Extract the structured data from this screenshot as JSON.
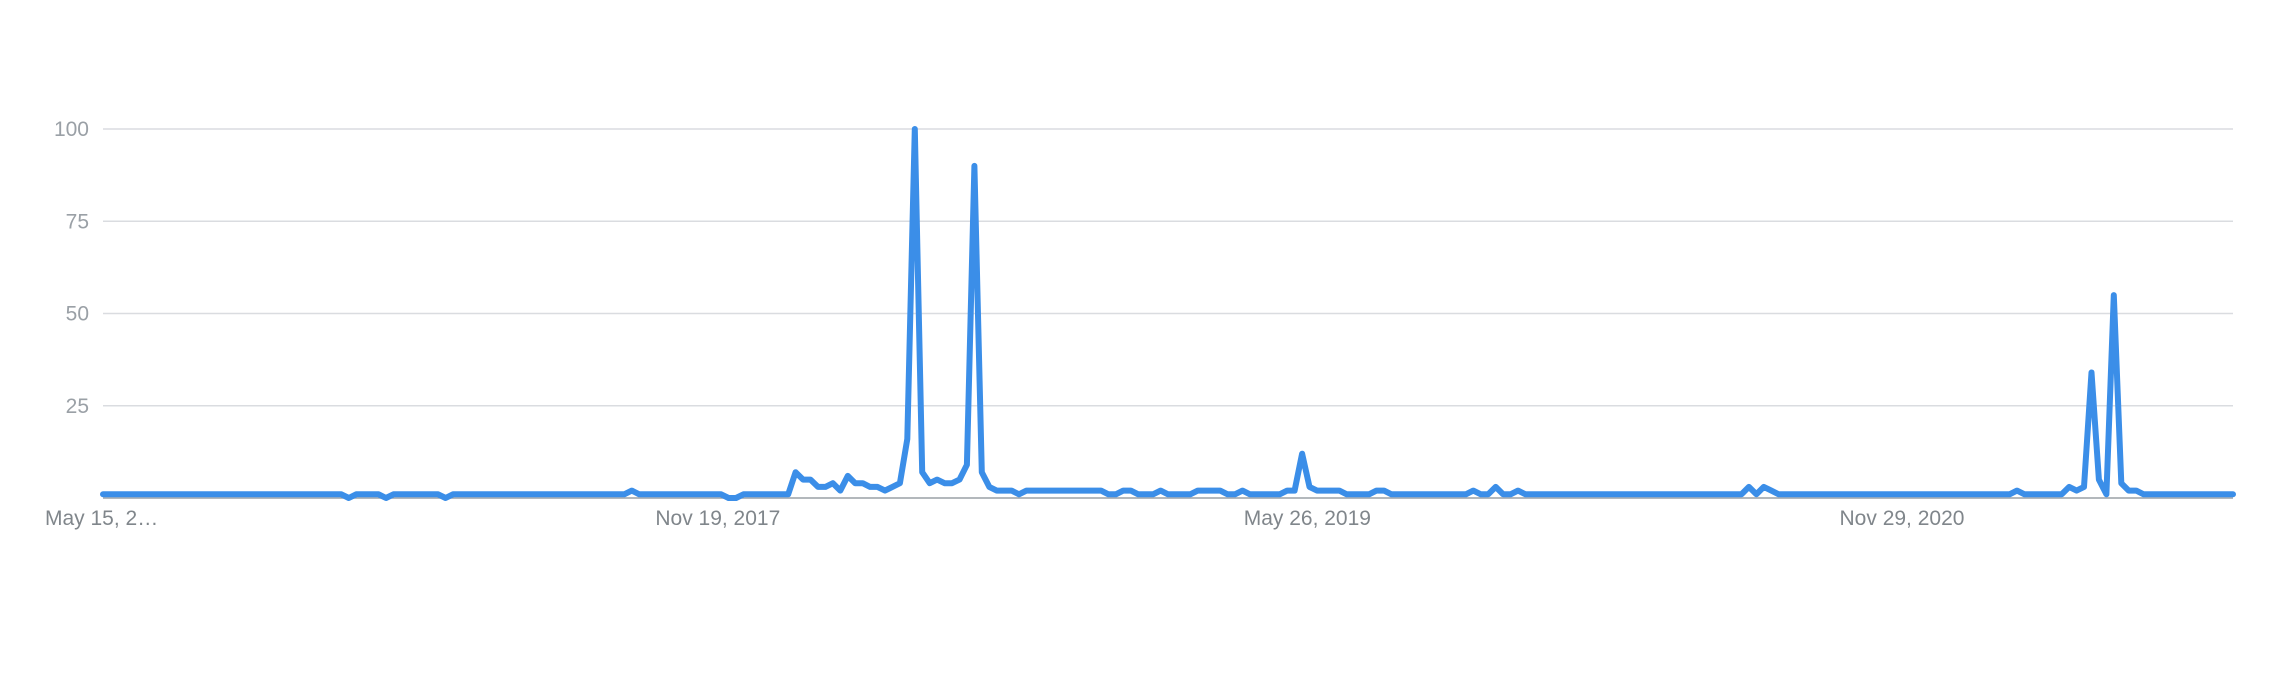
{
  "colors": {
    "series": "#3b8ee8",
    "grid": "#dadce0",
    "tick_text": "#9aa0a6"
  },
  "chart_data": {
    "type": "line",
    "grid": true,
    "ylim": [
      0,
      100
    ],
    "yticks": [
      25,
      50,
      75,
      100
    ],
    "xticks": [
      {
        "index": 0,
        "label": "May 15, 2…"
      },
      {
        "index": 79,
        "label": "Nov 19, 2017"
      },
      {
        "index": 158,
        "label": "May 26, 2019"
      },
      {
        "index": 238,
        "label": "Nov 29, 2020"
      }
    ],
    "series": [
      {
        "values": [
          1,
          1,
          1,
          1,
          1,
          1,
          1,
          1,
          1,
          1,
          1,
          1,
          1,
          1,
          1,
          1,
          1,
          1,
          1,
          1,
          1,
          1,
          1,
          1,
          1,
          1,
          1,
          1,
          1,
          1,
          1,
          1,
          1,
          0,
          1,
          1,
          1,
          1,
          0,
          1,
          1,
          1,
          1,
          1,
          1,
          1,
          0,
          1,
          1,
          1,
          1,
          1,
          1,
          1,
          1,
          1,
          1,
          1,
          1,
          1,
          1,
          1,
          1,
          1,
          1,
          1,
          1,
          1,
          1,
          1,
          1,
          2,
          1,
          1,
          1,
          1,
          1,
          1,
          1,
          1,
          1,
          1,
          1,
          1,
          0,
          0,
          1,
          1,
          1,
          1,
          1,
          1,
          1,
          7,
          5,
          5,
          3,
          3,
          4,
          2,
          6,
          4,
          4,
          3,
          3,
          2,
          3,
          4,
          16,
          100,
          7,
          4,
          5,
          4,
          4,
          5,
          9,
          90,
          7,
          3,
          2,
          2,
          2,
          1,
          2,
          2,
          2,
          2,
          2,
          2,
          2,
          2,
          2,
          2,
          2,
          1,
          1,
          2,
          2,
          1,
          1,
          1,
          2,
          1,
          1,
          1,
          1,
          2,
          2,
          2,
          2,
          1,
          1,
          2,
          1,
          1,
          1,
          1,
          1,
          2,
          2,
          12,
          3,
          2,
          2,
          2,
          2,
          1,
          1,
          1,
          1,
          2,
          2,
          1,
          1,
          1,
          1,
          1,
          1,
          1,
          1,
          1,
          1,
          1,
          2,
          1,
          1,
          3,
          1,
          1,
          2,
          1,
          1,
          1,
          1,
          1,
          1,
          1,
          1,
          1,
          1,
          1,
          1,
          1,
          1,
          1,
          1,
          1,
          1,
          1,
          1,
          1,
          1,
          1,
          1,
          1,
          1,
          1,
          1,
          1,
          1,
          3,
          1,
          3,
          2,
          1,
          1,
          1,
          1,
          1,
          1,
          1,
          1,
          1,
          1,
          1,
          1,
          1,
          1,
          1,
          1,
          1,
          1,
          1,
          1,
          1,
          1,
          1,
          1,
          1,
          1,
          1,
          1,
          1,
          1,
          1,
          1,
          2,
          1,
          1,
          1,
          1,
          1,
          1,
          3,
          2,
          3,
          34,
          5,
          1,
          55,
          4,
          2,
          2,
          1,
          1,
          1,
          1,
          1,
          1,
          1,
          1,
          1,
          1,
          1,
          1,
          1
        ]
      }
    ]
  }
}
